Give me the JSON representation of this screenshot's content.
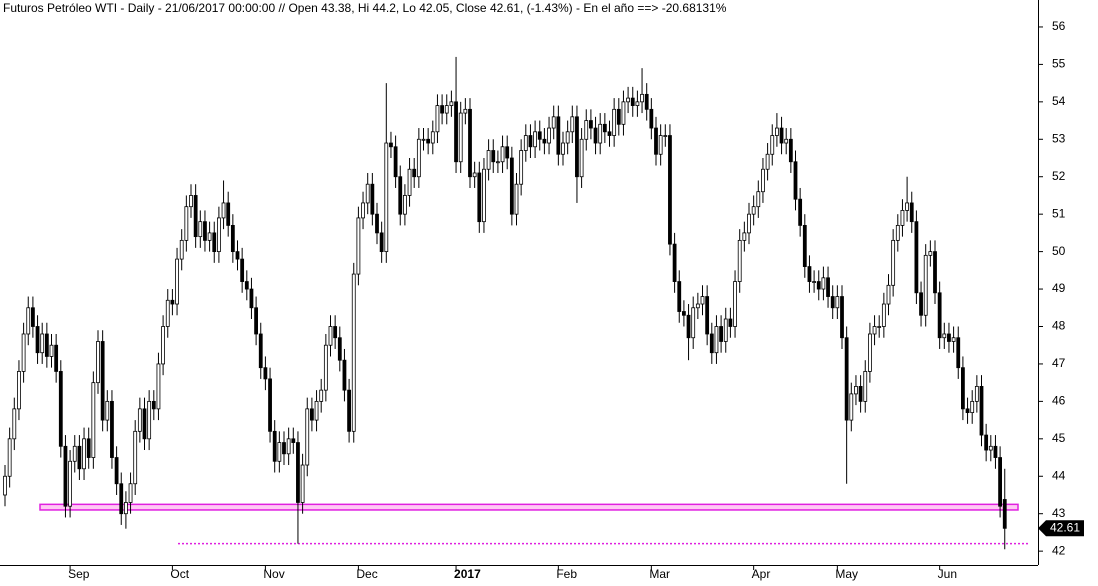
{
  "chart_data": {
    "type": "candlestick",
    "title": "Futuros Petróleo WTI - Daily - 21/06/2017 00:00:00 // Open 43.38, Hi 44.2, Lo 42.05, Close 42.61, (-1.43%) - En el año ==> -20.68131%",
    "categories": [
      null,
      null,
      null,
      null,
      null,
      null,
      null,
      null,
      null,
      null,
      null,
      null,
      null,
      null,
      "Sep",
      null,
      null,
      null,
      null,
      null,
      null,
      null,
      null,
      null,
      null,
      null,
      null,
      null,
      null,
      null,
      null,
      null,
      null,
      null,
      null,
      null,
      "Oct",
      null,
      null,
      null,
      null,
      null,
      null,
      null,
      null,
      null,
      null,
      null,
      null,
      null,
      null,
      null,
      null,
      null,
      null,
      null,
      "Nov",
      null,
      null,
      null,
      null,
      null,
      null,
      null,
      null,
      null,
      null,
      null,
      null,
      null,
      null,
      null,
      null,
      null,
      null,
      null,
      "Dec",
      null,
      null,
      null,
      null,
      null,
      null,
      null,
      null,
      null,
      null,
      null,
      null,
      null,
      null,
      null,
      null,
      null,
      null,
      null,
      null,
      "2017",
      null,
      null,
      null,
      null,
      null,
      null,
      null,
      null,
      null,
      null,
      null,
      null,
      null,
      null,
      null,
      null,
      null,
      null,
      null,
      null,
      null,
      "Feb",
      null,
      null,
      null,
      null,
      null,
      null,
      null,
      null,
      null,
      null,
      null,
      null,
      null,
      null,
      null,
      null,
      null,
      null,
      null,
      "Mar",
      null,
      null,
      null,
      null,
      null,
      null,
      null,
      null,
      null,
      null,
      null,
      null,
      null,
      null,
      null,
      null,
      null,
      null,
      null,
      null,
      null,
      "Apr",
      null,
      null,
      null,
      null,
      null,
      null,
      null,
      null,
      null,
      null,
      null,
      null,
      null,
      null,
      null,
      null,
      null,
      "May",
      null,
      null,
      null,
      null,
      null,
      null,
      null,
      null,
      null,
      null,
      null,
      null,
      null,
      null,
      null,
      null,
      null,
      null,
      null,
      null,
      null,
      "Jun",
      null,
      null,
      null,
      null,
      null,
      null,
      null,
      null,
      null,
      null,
      null,
      null,
      null,
      null
    ],
    "open": [
      43.5,
      44.0,
      45.0,
      45.8,
      46.8,
      47.8,
      48.5,
      48.0,
      47.3,
      47.8,
      47.2,
      47.5,
      46.8,
      44.8,
      43.2,
      44.4,
      44.8,
      44.2,
      45.0,
      44.5,
      46.5,
      47.6,
      45.5,
      46.0,
      44.5,
      43.8,
      43.0,
      43.3,
      43.8,
      45.2,
      45.8,
      45.0,
      46.0,
      45.8,
      47.0,
      48.0,
      48.7,
      48.6,
      49.8,
      50.3,
      51.2,
      51.5,
      50.4,
      50.8,
      50.3,
      50.5,
      50.0,
      50.9,
      51.3,
      50.7,
      50.0,
      49.8,
      49.2,
      49.0,
      48.5,
      47.8,
      46.9,
      46.6,
      45.2,
      44.4,
      44.9,
      44.6,
      45.0,
      44.9,
      43.3,
      44.3,
      45.8,
      45.5,
      46.0,
      46.3,
      47.5,
      48.0,
      47.7,
      47.1,
      46.3,
      45.2,
      49.4,
      50.9,
      51.3,
      51.8,
      51.0,
      50.5,
      50.0,
      52.9,
      52.8,
      52.0,
      51.0,
      51.5,
      52.2,
      52.0,
      53.0,
      53.0,
      52.9,
      53.2,
      53.9,
      53.7,
      53.9,
      54.0,
      52.4,
      53.7,
      53.8,
      52.0,
      52.1,
      50.8,
      52.2,
      52.7,
      52.4,
      52.4,
      52.8,
      52.5,
      51.0,
      51.8,
      52.7,
      53.1,
      52.8,
      53.2,
      53.0,
      52.9,
      53.3,
      53.6,
      52.6,
      52.9,
      53.2,
      53.6,
      52.0,
      53.0,
      53.5,
      53.3,
      52.9,
      53.4,
      53.2,
      53.1,
      53.8,
      53.4,
      54.0,
      54.1,
      53.9,
      54.0,
      54.2,
      53.8,
      53.3,
      52.6,
      53.1,
      53.1,
      50.2,
      49.2,
      48.4,
      48.3,
      47.7,
      48.5,
      48.6,
      48.8,
      47.8,
      47.3,
      48.0,
      47.6,
      48.2,
      48.0,
      49.2,
      50.3,
      50.5,
      51.0,
      51.2,
      51.6,
      52.2,
      52.6,
      53.1,
      53.3,
      52.9,
      53.0,
      52.4,
      51.4,
      50.7,
      49.6,
      49.2,
      49.2,
      49.0,
      49.3,
      48.8,
      48.5,
      48.8,
      47.7,
      45.5,
      46.2,
      46.4,
      46.0,
      46.8,
      47.8,
      48.0,
      48.0,
      48.6,
      49.1,
      50.3,
      50.7,
      51.1,
      51.3,
      50.8,
      48.9,
      48.3,
      49.9,
      50.0,
      48.9,
      47.7,
      47.8,
      47.6,
      47.7,
      46.9,
      45.8,
      45.7,
      46.0,
      46.4,
      45.1,
      44.7,
      44.8,
      44.5,
      43.38
    ],
    "high": [
      44.3,
      45.3,
      46.1,
      47.1,
      48.1,
      48.8,
      48.8,
      48.3,
      48.1,
      48.1,
      47.8,
      47.8,
      47.1,
      45.1,
      44.7,
      45.1,
      45.1,
      45.3,
      45.3,
      46.8,
      47.9,
      47.9,
      46.3,
      46.3,
      44.8,
      44.1,
      43.6,
      44.1,
      45.5,
      46.1,
      46.1,
      46.3,
      46.3,
      47.3,
      48.3,
      49.0,
      49.0,
      50.1,
      50.6,
      51.5,
      51.8,
      51.8,
      51.1,
      51.1,
      50.8,
      50.8,
      51.2,
      51.9,
      51.6,
      51.0,
      50.3,
      50.1,
      49.5,
      49.3,
      48.8,
      48.1,
      47.2,
      46.9,
      45.5,
      45.2,
      45.2,
      45.3,
      45.3,
      45.2,
      44.6,
      46.1,
      46.1,
      46.3,
      46.6,
      47.8,
      48.3,
      48.3,
      48.0,
      47.4,
      46.6,
      49.7,
      51.2,
      51.6,
      52.1,
      52.1,
      51.3,
      50.8,
      54.5,
      53.2,
      53.1,
      52.3,
      51.8,
      52.5,
      52.5,
      53.3,
      53.3,
      53.3,
      53.5,
      54.2,
      54.2,
      54.2,
      54.3,
      55.2,
      54.0,
      54.1,
      54.1,
      52.4,
      52.4,
      52.5,
      53.0,
      53.0,
      52.7,
      53.1,
      53.1,
      52.8,
      52.1,
      53.0,
      53.4,
      53.4,
      53.5,
      53.5,
      53.3,
      53.6,
      53.9,
      53.9,
      53.2,
      53.5,
      53.9,
      53.9,
      53.3,
      53.8,
      53.8,
      53.6,
      53.7,
      53.7,
      53.5,
      54.1,
      54.1,
      54.3,
      54.4,
      54.4,
      54.3,
      54.9,
      54.5,
      54.1,
      53.6,
      53.4,
      53.4,
      53.4,
      50.5,
      49.5,
      48.7,
      48.6,
      48.8,
      48.9,
      49.1,
      49.1,
      48.1,
      48.3,
      48.3,
      48.5,
      48.5,
      49.5,
      50.6,
      50.8,
      51.3,
      51.5,
      51.9,
      52.5,
      52.9,
      53.4,
      53.7,
      53.6,
      53.3,
      53.3,
      52.7,
      51.7,
      51.0,
      49.9,
      49.5,
      49.5,
      49.6,
      49.6,
      49.1,
      49.1,
      49.1,
      48.0,
      46.5,
      46.7,
      46.7,
      47.1,
      48.1,
      48.3,
      48.3,
      48.9,
      49.4,
      50.6,
      51.0,
      51.4,
      52.0,
      51.6,
      51.1,
      49.2,
      50.2,
      50.3,
      50.3,
      49.2,
      48.1,
      48.1,
      48.0,
      48.0,
      47.2,
      46.1,
      46.3,
      46.7,
      46.7,
      45.4,
      45.1,
      45.1,
      44.8,
      44.2
    ],
    "low": [
      43.2,
      43.7,
      44.7,
      45.5,
      46.5,
      47.5,
      47.7,
      47.0,
      47.0,
      46.9,
      46.9,
      46.5,
      44.5,
      42.9,
      42.9,
      44.1,
      43.9,
      43.9,
      44.2,
      44.2,
      46.2,
      45.2,
      45.2,
      44.2,
      43.5,
      42.7,
      42.6,
      43.0,
      43.5,
      44.9,
      44.7,
      44.7,
      45.5,
      45.5,
      46.7,
      47.7,
      48.3,
      48.3,
      49.5,
      50.0,
      50.9,
      50.1,
      50.1,
      50.0,
      50.0,
      49.7,
      49.7,
      50.6,
      50.4,
      49.7,
      49.5,
      48.9,
      48.7,
      48.2,
      47.5,
      46.6,
      46.3,
      44.9,
      44.1,
      44.1,
      44.3,
      44.3,
      44.6,
      42.2,
      43.0,
      44.0,
      45.2,
      45.2,
      45.7,
      46.0,
      47.2,
      47.4,
      46.8,
      46.0,
      44.9,
      44.9,
      49.1,
      50.6,
      51.0,
      50.7,
      50.2,
      49.7,
      49.7,
      52.5,
      51.7,
      50.7,
      50.7,
      51.2,
      51.7,
      51.7,
      52.7,
      52.6,
      52.6,
      52.9,
      53.4,
      53.4,
      53.6,
      52.1,
      52.1,
      53.4,
      51.7,
      51.7,
      50.5,
      50.5,
      51.9,
      52.1,
      52.1,
      52.1,
      52.2,
      50.7,
      50.7,
      51.5,
      52.4,
      52.5,
      52.5,
      52.7,
      52.6,
      52.6,
      53.0,
      52.3,
      52.3,
      52.6,
      52.9,
      51.3,
      51.7,
      52.7,
      53.0,
      52.6,
      52.6,
      52.9,
      52.8,
      52.8,
      53.1,
      53.1,
      53.7,
      53.6,
      53.6,
      53.7,
      53.5,
      53.0,
      52.3,
      52.3,
      52.8,
      49.9,
      48.9,
      48.1,
      48.0,
      47.1,
      47.4,
      48.2,
      48.3,
      47.5,
      47.0,
      47.0,
      47.3,
      47.3,
      47.7,
      47.7,
      48.9,
      50.0,
      50.2,
      50.7,
      50.9,
      51.3,
      51.9,
      52.3,
      52.8,
      52.6,
      52.6,
      52.1,
      51.1,
      50.4,
      49.3,
      48.9,
      48.9,
      48.7,
      48.7,
      48.5,
      48.2,
      48.2,
      47.4,
      43.8,
      45.2,
      45.9,
      45.7,
      45.7,
      46.5,
      47.5,
      47.7,
      47.7,
      48.3,
      48.8,
      50.0,
      50.4,
      50.8,
      50.5,
      48.6,
      48.0,
      48.0,
      49.6,
      48.6,
      47.4,
      47.4,
      47.3,
      47.3,
      46.6,
      45.5,
      45.4,
      45.4,
      45.7,
      44.8,
      44.4,
      44.4,
      44.2,
      42.9,
      42.05
    ],
    "close": [
      44.0,
      45.0,
      45.8,
      46.8,
      47.8,
      48.5,
      48.0,
      47.3,
      47.8,
      47.2,
      47.5,
      46.8,
      44.8,
      43.2,
      44.4,
      44.8,
      44.2,
      45.0,
      44.5,
      46.5,
      47.6,
      45.5,
      46.0,
      44.5,
      43.8,
      43.0,
      43.3,
      43.8,
      45.2,
      45.8,
      45.0,
      46.0,
      45.8,
      47.0,
      48.0,
      48.7,
      48.6,
      49.8,
      50.3,
      51.2,
      51.5,
      50.4,
      50.8,
      50.3,
      50.5,
      50.0,
      50.9,
      51.3,
      50.7,
      50.0,
      49.8,
      49.2,
      49.0,
      48.5,
      47.8,
      46.9,
      46.6,
      45.2,
      44.4,
      44.9,
      44.6,
      45.0,
      44.9,
      43.3,
      44.3,
      45.8,
      45.5,
      46.0,
      46.3,
      47.5,
      48.0,
      47.7,
      47.1,
      46.3,
      45.2,
      49.4,
      50.9,
      51.3,
      51.8,
      51.0,
      50.5,
      50.0,
      52.9,
      52.8,
      52.0,
      51.0,
      51.5,
      52.2,
      52.0,
      53.0,
      53.0,
      52.9,
      53.2,
      53.9,
      53.7,
      53.9,
      54.0,
      52.4,
      53.7,
      53.8,
      52.0,
      52.1,
      50.8,
      52.2,
      52.7,
      52.4,
      52.4,
      52.8,
      52.5,
      51.0,
      51.8,
      52.7,
      53.1,
      52.8,
      53.2,
      53.0,
      52.9,
      53.3,
      53.6,
      52.6,
      52.9,
      53.2,
      53.6,
      52.0,
      53.0,
      53.5,
      53.3,
      52.9,
      53.4,
      53.2,
      53.1,
      53.8,
      53.4,
      54.0,
      54.1,
      53.9,
      54.0,
      54.2,
      53.8,
      53.3,
      52.6,
      53.1,
      53.1,
      50.2,
      49.2,
      48.4,
      48.3,
      47.7,
      48.5,
      48.6,
      48.8,
      47.8,
      47.3,
      48.0,
      47.6,
      48.2,
      48.0,
      49.2,
      50.3,
      50.5,
      51.0,
      51.2,
      51.6,
      52.2,
      52.6,
      53.1,
      53.3,
      52.9,
      53.0,
      52.4,
      51.4,
      50.7,
      49.6,
      49.2,
      49.2,
      49.0,
      49.3,
      48.8,
      48.5,
      48.8,
      47.7,
      45.5,
      46.2,
      46.4,
      46.0,
      46.8,
      47.8,
      48.0,
      48.0,
      48.6,
      49.1,
      50.3,
      50.7,
      51.1,
      51.3,
      50.8,
      48.9,
      48.3,
      49.9,
      50.0,
      48.9,
      47.7,
      47.8,
      47.6,
      47.7,
      46.9,
      45.8,
      45.7,
      46.0,
      46.4,
      45.1,
      44.7,
      44.8,
      44.5,
      43.2,
      42.61
    ],
    "up_color": "#ffffff",
    "down_color": "#000000",
    "ylim": [
      41.63,
      56.72
    ],
    "yticks": [
      42,
      43,
      44,
      45,
      46,
      47,
      48,
      49,
      50,
      51,
      52,
      53,
      54,
      55,
      56
    ],
    "support_zone": [
      43.1,
      43.25
    ],
    "support_line": 42.2,
    "line_color": "#e020e0"
  }
}
